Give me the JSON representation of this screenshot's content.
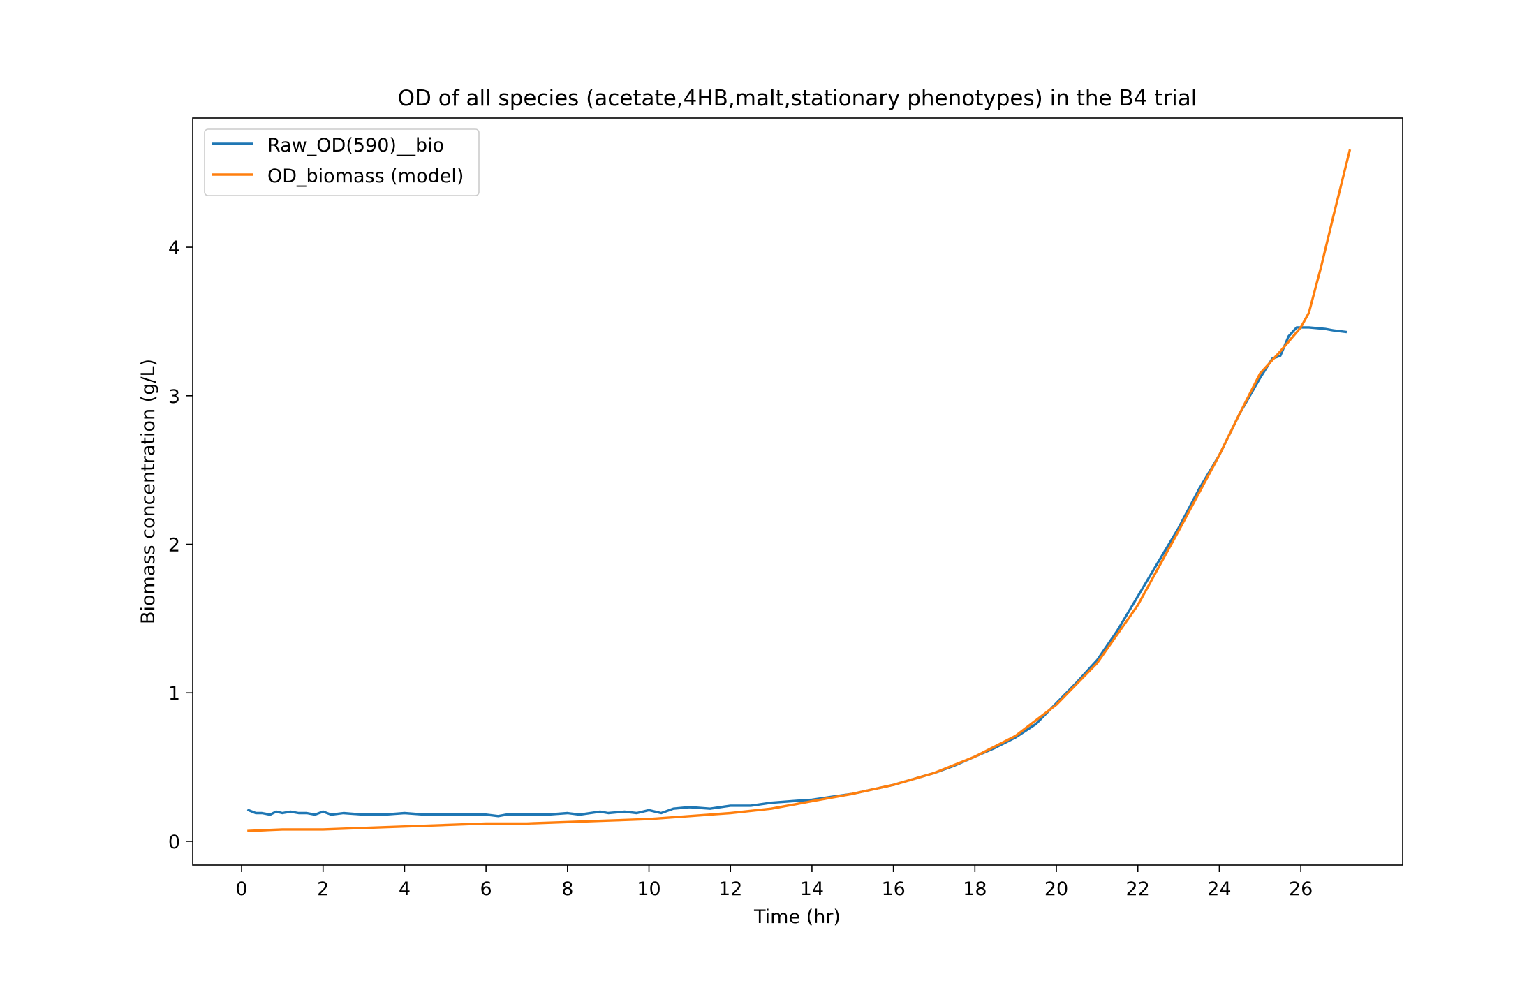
{
  "chart_data": {
    "type": "line",
    "title": "OD of all species (acetate,4HB,malt,stationary phenotypes) in the B4 trial",
    "xlabel": "Time (hr)",
    "ylabel": "Biomass concentration (g/L)",
    "xlim": [
      -1.2,
      28.5
    ],
    "ylim": [
      -0.16,
      4.87
    ],
    "xticks": [
      0,
      2,
      4,
      6,
      8,
      10,
      12,
      14,
      16,
      18,
      20,
      22,
      24,
      26
    ],
    "yticks": [
      0,
      1,
      2,
      3,
      4
    ],
    "grid": false,
    "legend": "top-left",
    "series": [
      {
        "name": "Raw_OD(590)__bio",
        "color": "#1f77b4",
        "points": [
          [
            0.17,
            0.21
          ],
          [
            0.35,
            0.19
          ],
          [
            0.5,
            0.19
          ],
          [
            0.7,
            0.18
          ],
          [
            0.85,
            0.2
          ],
          [
            1.0,
            0.19
          ],
          [
            1.2,
            0.2
          ],
          [
            1.4,
            0.19
          ],
          [
            1.6,
            0.19
          ],
          [
            1.8,
            0.18
          ],
          [
            2.0,
            0.2
          ],
          [
            2.2,
            0.18
          ],
          [
            2.5,
            0.19
          ],
          [
            3.0,
            0.18
          ],
          [
            3.5,
            0.18
          ],
          [
            4.0,
            0.19
          ],
          [
            4.5,
            0.18
          ],
          [
            5.0,
            0.18
          ],
          [
            5.5,
            0.18
          ],
          [
            6.0,
            0.18
          ],
          [
            6.3,
            0.17
          ],
          [
            6.5,
            0.18
          ],
          [
            7.0,
            0.18
          ],
          [
            7.5,
            0.18
          ],
          [
            8.0,
            0.19
          ],
          [
            8.3,
            0.18
          ],
          [
            8.8,
            0.2
          ],
          [
            9.0,
            0.19
          ],
          [
            9.4,
            0.2
          ],
          [
            9.7,
            0.19
          ],
          [
            10.0,
            0.21
          ],
          [
            10.3,
            0.19
          ],
          [
            10.6,
            0.22
          ],
          [
            11.0,
            0.23
          ],
          [
            11.5,
            0.22
          ],
          [
            12.0,
            0.24
          ],
          [
            12.5,
            0.24
          ],
          [
            13.0,
            0.26
          ],
          [
            13.5,
            0.27
          ],
          [
            14.0,
            0.28
          ],
          [
            14.5,
            0.3
          ],
          [
            15.0,
            0.32
          ],
          [
            15.5,
            0.35
          ],
          [
            16.0,
            0.38
          ],
          [
            16.5,
            0.42
          ],
          [
            17.0,
            0.46
          ],
          [
            17.5,
            0.51
          ],
          [
            18.0,
            0.57
          ],
          [
            18.5,
            0.63
          ],
          [
            19.0,
            0.7
          ],
          [
            19.5,
            0.79
          ],
          [
            20.0,
            0.93
          ],
          [
            20.5,
            1.07
          ],
          [
            21.0,
            1.22
          ],
          [
            21.5,
            1.42
          ],
          [
            22.0,
            1.65
          ],
          [
            22.5,
            1.88
          ],
          [
            23.0,
            2.11
          ],
          [
            23.5,
            2.37
          ],
          [
            24.0,
            2.6
          ],
          [
            24.5,
            2.88
          ],
          [
            25.0,
            3.12
          ],
          [
            25.3,
            3.25
          ],
          [
            25.5,
            3.27
          ],
          [
            25.7,
            3.4
          ],
          [
            25.9,
            3.46
          ],
          [
            26.2,
            3.46
          ],
          [
            26.6,
            3.45
          ],
          [
            26.8,
            3.44
          ],
          [
            27.1,
            3.43
          ]
        ]
      },
      {
        "name": "OD_biomass (model)",
        "color": "#ff7f0e",
        "points": [
          [
            0.17,
            0.07
          ],
          [
            1.0,
            0.08
          ],
          [
            2.0,
            0.08
          ],
          [
            3.0,
            0.09
          ],
          [
            4.0,
            0.1
          ],
          [
            5.0,
            0.11
          ],
          [
            6.0,
            0.12
          ],
          [
            7.0,
            0.12
          ],
          [
            8.0,
            0.13
          ],
          [
            9.0,
            0.14
          ],
          [
            10.0,
            0.15
          ],
          [
            11.0,
            0.17
          ],
          [
            12.0,
            0.19
          ],
          [
            13.0,
            0.22
          ],
          [
            14.0,
            0.27
          ],
          [
            15.0,
            0.32
          ],
          [
            16.0,
            0.38
          ],
          [
            17.0,
            0.46
          ],
          [
            18.0,
            0.57
          ],
          [
            19.0,
            0.71
          ],
          [
            20.0,
            0.92
          ],
          [
            21.0,
            1.2
          ],
          [
            22.0,
            1.59
          ],
          [
            23.0,
            2.09
          ],
          [
            24.0,
            2.6
          ],
          [
            24.5,
            2.88
          ],
          [
            25.0,
            3.15
          ],
          [
            25.5,
            3.3
          ],
          [
            26.0,
            3.46
          ],
          [
            26.2,
            3.56
          ],
          [
            26.5,
            3.87
          ],
          [
            26.8,
            4.21
          ],
          [
            27.2,
            4.65
          ]
        ]
      }
    ]
  }
}
